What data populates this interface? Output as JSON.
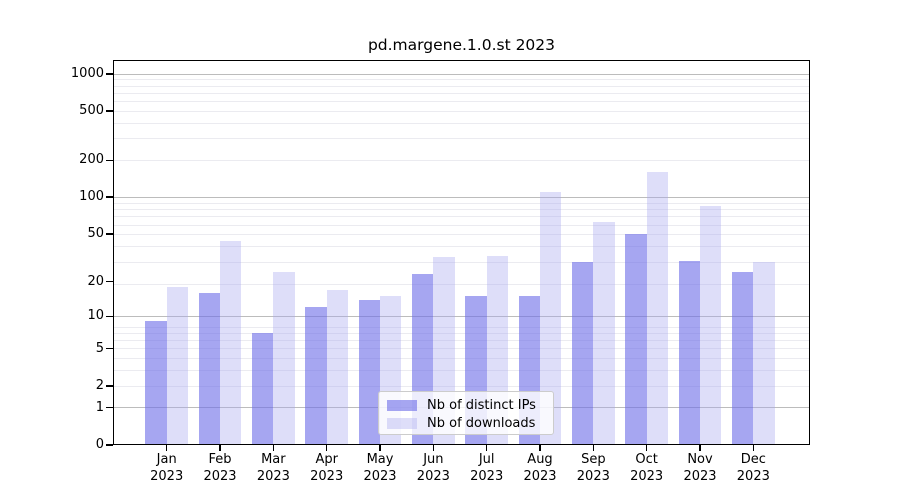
{
  "chart_data": {
    "type": "bar",
    "title": "pd.margene.1.0.st 2023",
    "months": [
      "Jan",
      "Feb",
      "Mar",
      "Apr",
      "May",
      "Jun",
      "Jul",
      "Aug",
      "Sep",
      "Oct",
      "Nov",
      "Dec"
    ],
    "year": "2023",
    "categories": [
      "Jan 2023",
      "Feb 2023",
      "Mar 2023",
      "Apr 2023",
      "May 2023",
      "Jun 2023",
      "Jul 2023",
      "Aug 2023",
      "Sep 2023",
      "Oct 2023",
      "Nov 2023",
      "Dec 2023"
    ],
    "series": [
      {
        "name": "Nb of distinct IPs",
        "color": "#a5a5f0",
        "fill": "rgba(112,112,232,0.62)",
        "values": [
          9,
          16,
          7,
          12,
          14,
          23,
          15,
          15,
          29,
          50,
          30,
          24
        ]
      },
      {
        "name": "Nb of downloads",
        "color": "#dedef9",
        "fill": "rgba(168,168,240,0.38)",
        "values": [
          18,
          44,
          24,
          17,
          15,
          32,
          33,
          110,
          63,
          160,
          85,
          29
        ]
      }
    ],
    "yscale": "log1p",
    "ylabel": "",
    "xlabel": "",
    "ylim": [
      0,
      1300
    ],
    "y_ticks": [
      0,
      1,
      2,
      5,
      10,
      20,
      50,
      100,
      200,
      500,
      1000
    ],
    "major_gridlines": [
      1,
      10,
      100,
      1000
    ],
    "grid": true,
    "legend_position": "lower center"
  },
  "colors": {
    "background": "#ffffff",
    "bar_dark": "#a5a5f0",
    "bar_light": "#dedef9",
    "grid_major": "#bcbcbc",
    "grid_minor": "#ebebf0",
    "axis": "#000000",
    "legend_border": "#cccccc"
  }
}
